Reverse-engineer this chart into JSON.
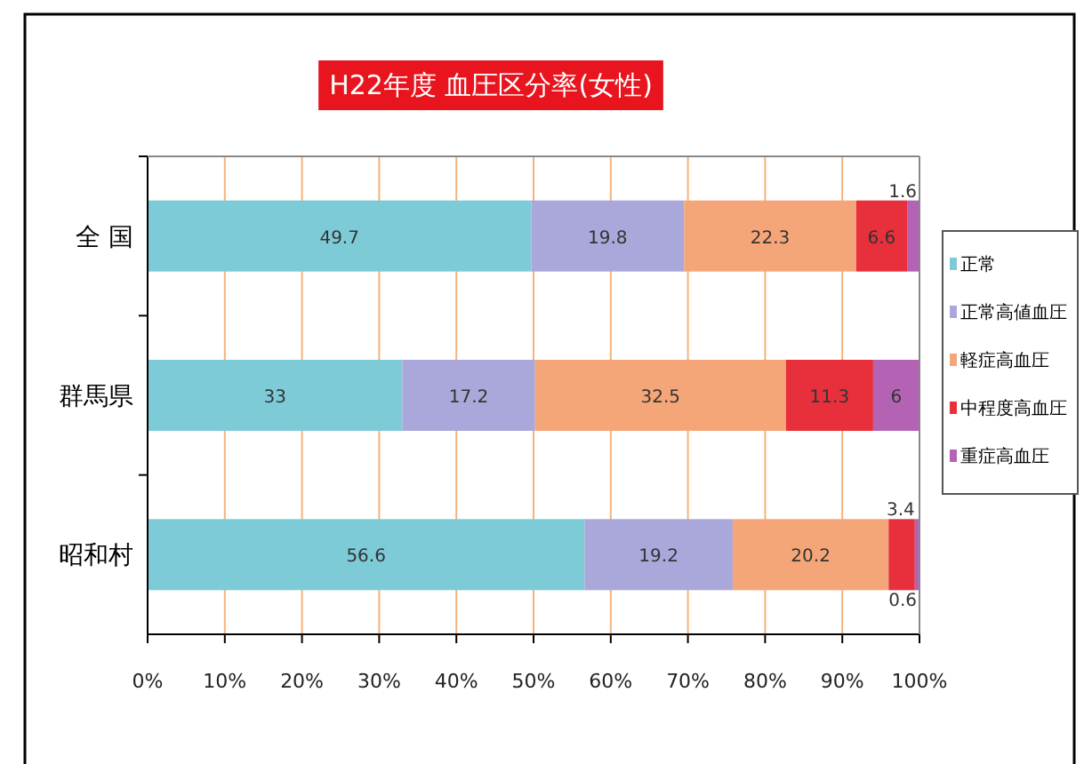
{
  "chart_data": {
    "type": "bar",
    "orientation": "horizontal",
    "stacked": true,
    "title": "H22年度 血圧区分率(女性)",
    "categories": [
      "全 国",
      "群馬県",
      "昭和村"
    ],
    "series": [
      {
        "name": "正常",
        "color": "#7ecbd8",
        "values": [
          49.7,
          33,
          56.6
        ]
      },
      {
        "name": "正常高値血圧",
        "color": "#aaa8da",
        "values": [
          19.8,
          17.2,
          19.2
        ]
      },
      {
        "name": "軽症高血圧",
        "color": "#f5a678",
        "values": [
          22.3,
          32.5,
          20.2
        ]
      },
      {
        "name": "中程度高血圧",
        "color": "#e8303c",
        "values": [
          6.6,
          11.3,
          3.4
        ]
      },
      {
        "name": "重症高血圧",
        "color": "#b463b4",
        "values": [
          1.6,
          6,
          0.6
        ]
      }
    ],
    "xlim": [
      0,
      100
    ],
    "xticks": [
      {
        "value": 0,
        "label": "0%"
      },
      {
        "value": 10,
        "label": "10%"
      },
      {
        "value": 20,
        "label": "20%"
      },
      {
        "value": 30,
        "label": "30%"
      },
      {
        "value": 40,
        "label": "40%"
      },
      {
        "value": 50,
        "label": "50%"
      },
      {
        "value": 60,
        "label": "60%"
      },
      {
        "value": 70,
        "label": "70%"
      },
      {
        "value": 80,
        "label": "80%"
      },
      {
        "value": 90,
        "label": "90%"
      },
      {
        "value": 100,
        "label": "100%"
      }
    ],
    "grid": "x",
    "data_labels": true,
    "legend": "right"
  }
}
